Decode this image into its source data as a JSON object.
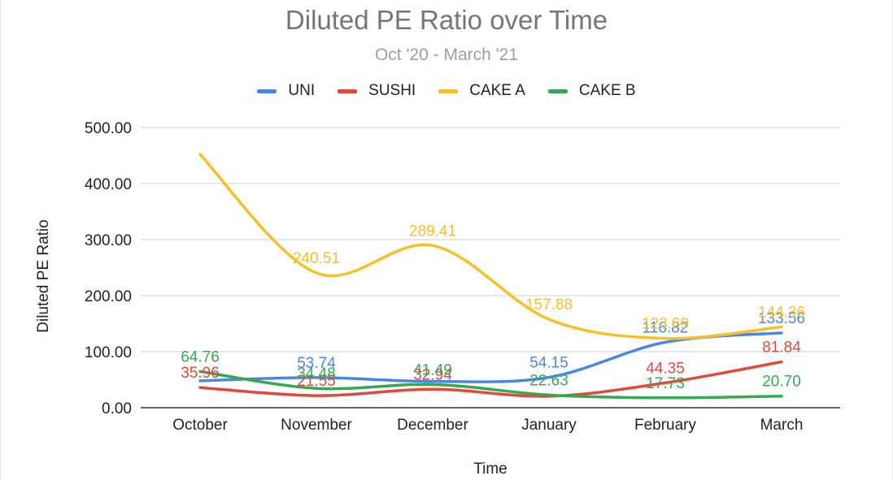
{
  "chart_data": {
    "type": "line",
    "title": "Diluted PE Ratio over Time",
    "subtitle": "Oct '20 - March '21",
    "xlabel": "Time",
    "ylabel": "Diluted PE Ratio",
    "ylim": [
      0,
      500
    ],
    "yticks": [
      "0.00",
      "100.00",
      "200.00",
      "300.00",
      "400.00",
      "500.00"
    ],
    "grid": true,
    "legend_position": "top",
    "categories": [
      "October",
      "November",
      "December",
      "January",
      "February",
      "March"
    ],
    "series": [
      {
        "name": "UNI",
        "color": "#4a86e8",
        "values": [
          48.0,
          53.74,
          47.0,
          54.15,
          116.82,
          133.56
        ],
        "labels": [
          "",
          "53.74",
          "",
          "54.15",
          "116.82",
          "133.56"
        ]
      },
      {
        "name": "SUSHI",
        "color": "#e2483d",
        "values": [
          35.96,
          21.55,
          32.94,
          20.5,
          44.35,
          81.84
        ],
        "labels": [
          "35.96",
          "21.55",
          "32.94",
          "",
          "44.35",
          "81.84"
        ]
      },
      {
        "name": "CAKE A",
        "color": "#f6c026",
        "values": [
          452.0,
          240.51,
          289.41,
          157.88,
          123.69,
          144.36
        ],
        "labels": [
          "",
          "240.51",
          "289.41",
          "157.88",
          "123.69",
          "144.36"
        ]
      },
      {
        "name": "CAKE B",
        "color": "#36a852",
        "values": [
          64.76,
          34.48,
          41.49,
          22.63,
          17.73,
          20.7
        ],
        "labels": [
          "64.76",
          "34.48",
          "41.49",
          "22.63",
          "17.73",
          "20.70"
        ]
      }
    ]
  }
}
